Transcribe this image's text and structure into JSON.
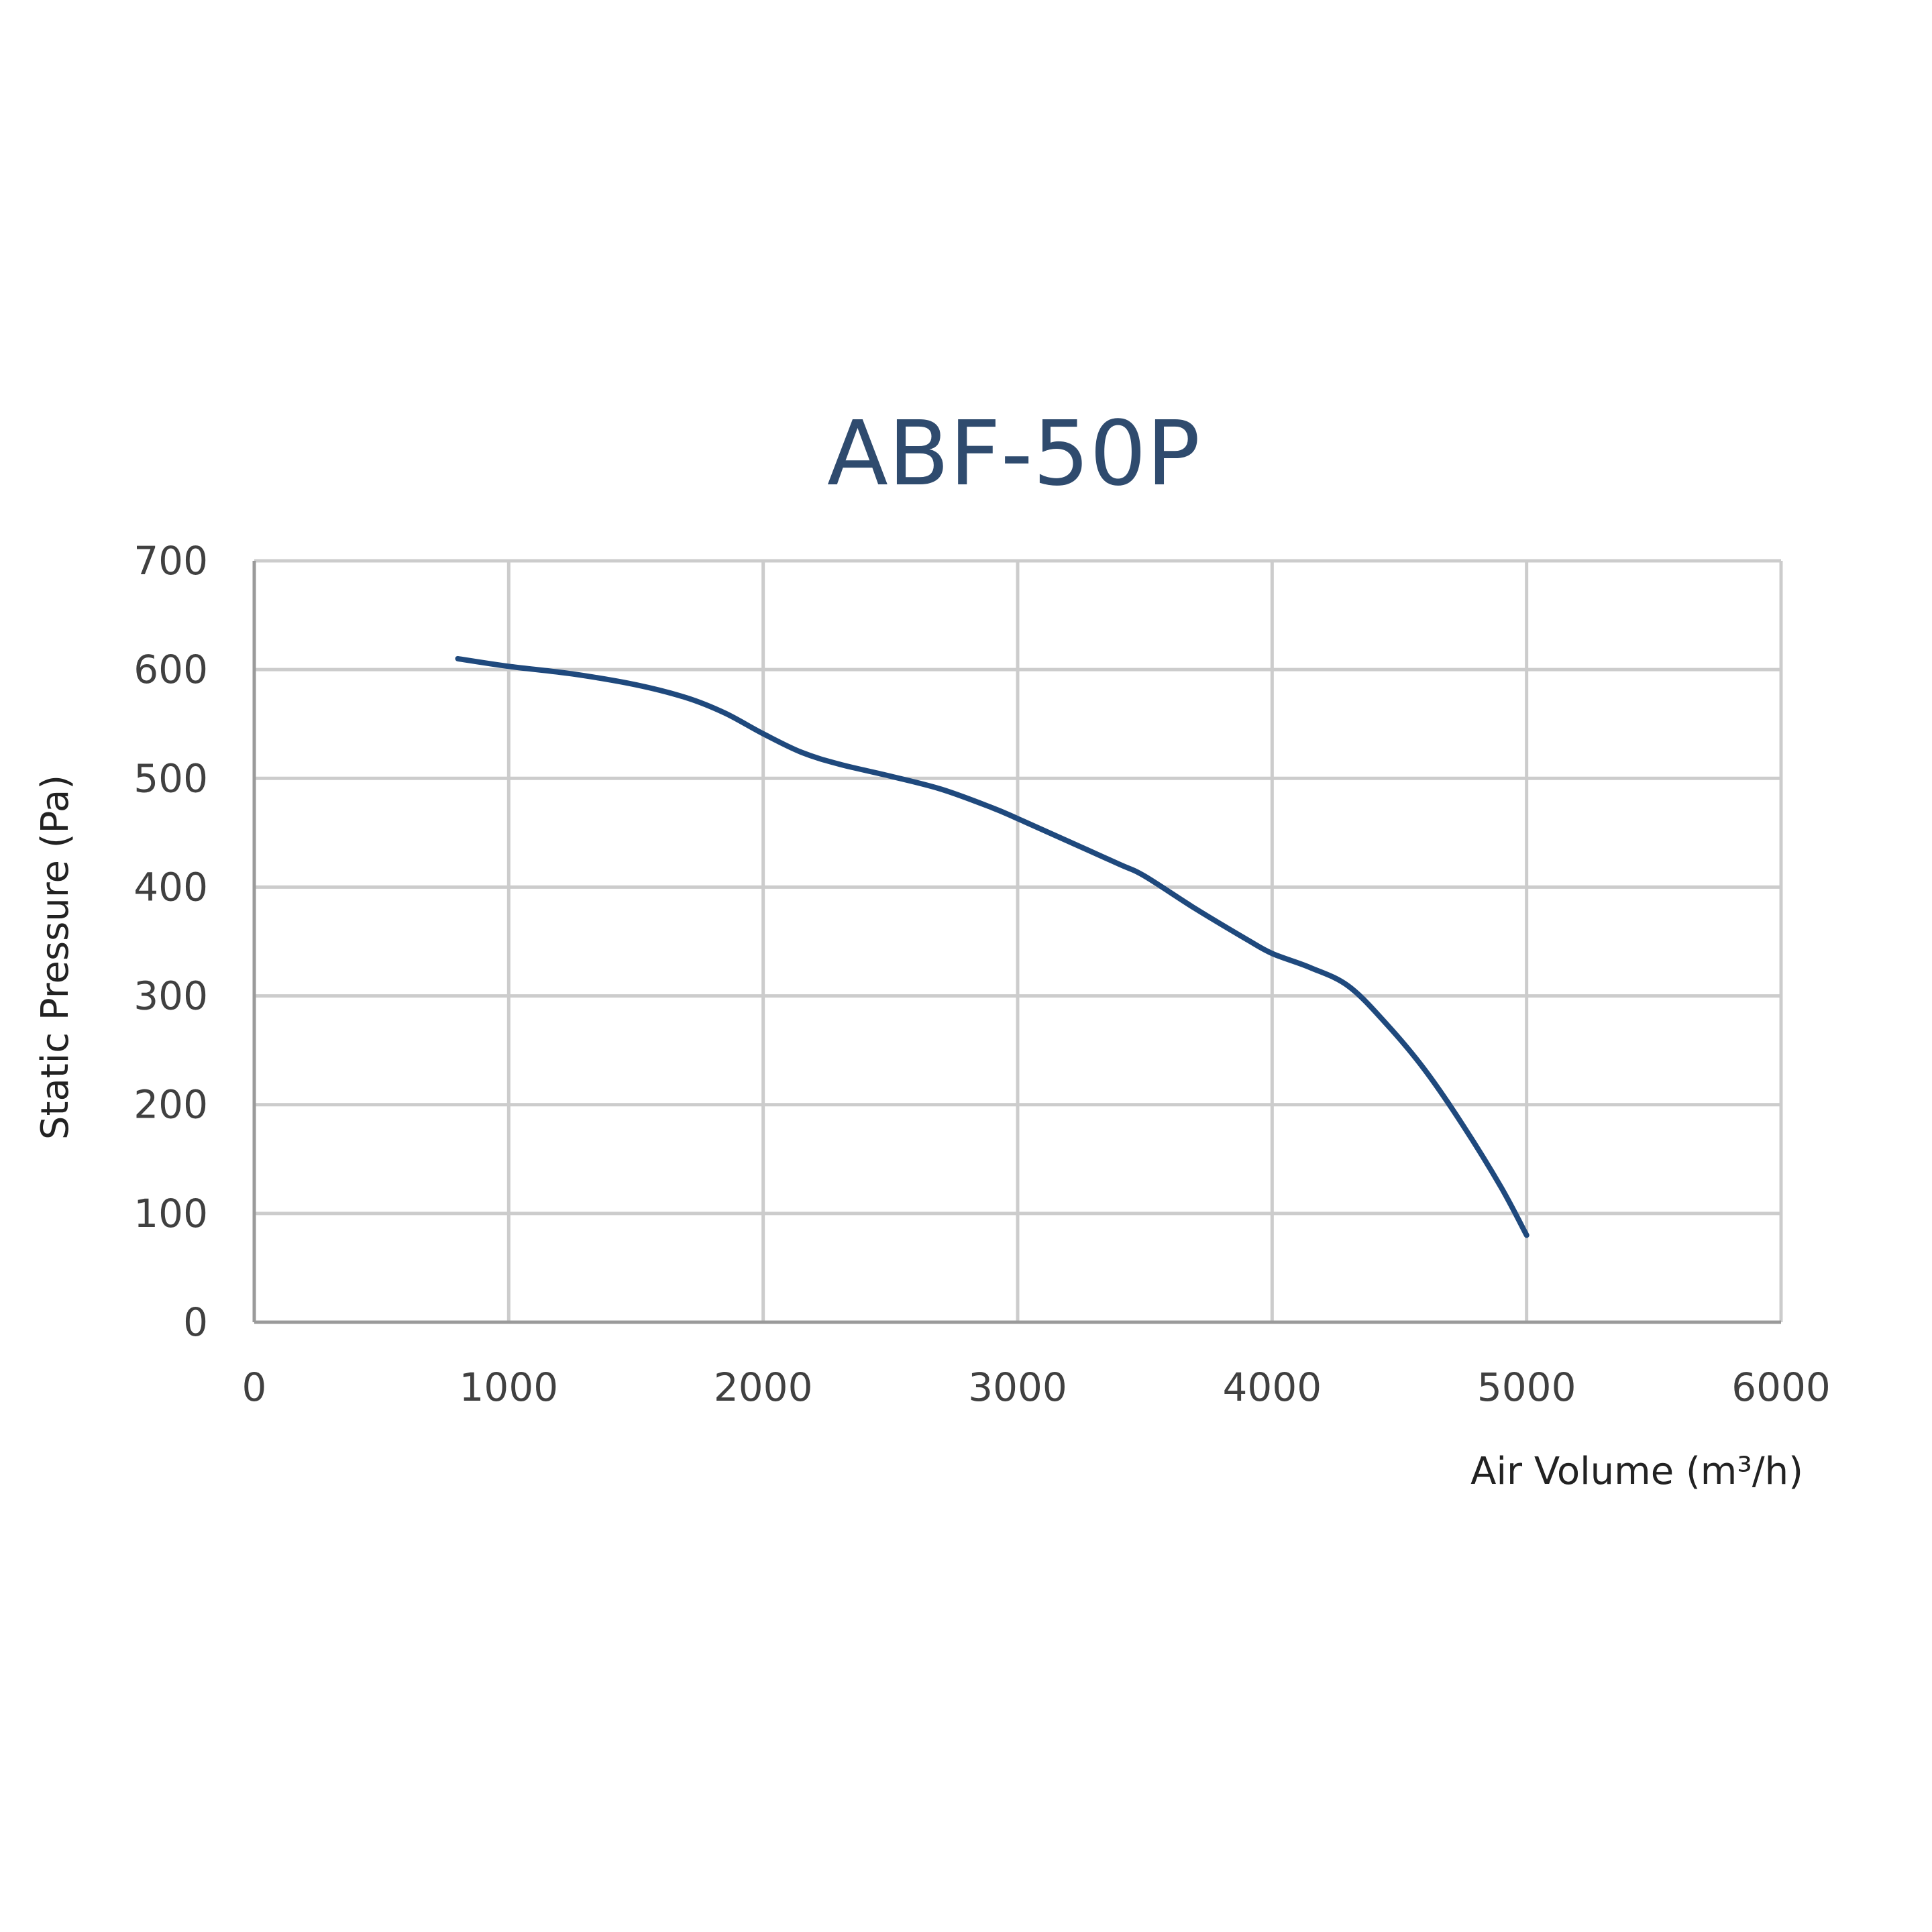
{
  "chart_data": {
    "type": "line",
    "title": "ABF-50P",
    "xlabel": "Air Volume (m³/h)",
    "ylabel": "Static Pressure (Pa)",
    "xlim": [
      0,
      6000
    ],
    "ylim": [
      0,
      700
    ],
    "x_ticks": [
      0,
      1000,
      2000,
      3000,
      4000,
      5000,
      6000
    ],
    "y_ticks": [
      0,
      100,
      200,
      300,
      400,
      500,
      600,
      700
    ],
    "grid": true,
    "legend": "none",
    "series": [
      {
        "color": "#1f497d",
        "points": [
          [
            800,
            610
          ],
          [
            1000,
            603
          ],
          [
            1250,
            596
          ],
          [
            1500,
            586
          ],
          [
            1700,
            574
          ],
          [
            1850,
            560
          ],
          [
            2000,
            541
          ],
          [
            2150,
            524
          ],
          [
            2300,
            513
          ],
          [
            2500,
            502
          ],
          [
            2700,
            490
          ],
          [
            2900,
            473
          ],
          [
            3000,
            463
          ],
          [
            3200,
            442
          ],
          [
            3400,
            421
          ],
          [
            3500,
            410
          ],
          [
            3700,
            380
          ],
          [
            3900,
            352
          ],
          [
            4000,
            339
          ],
          [
            4150,
            326
          ],
          [
            4300,
            309
          ],
          [
            4450,
            274
          ],
          [
            4600,
            232
          ],
          [
            4750,
            181
          ],
          [
            4900,
            124
          ],
          [
            5000,
            80
          ]
        ]
      }
    ]
  }
}
